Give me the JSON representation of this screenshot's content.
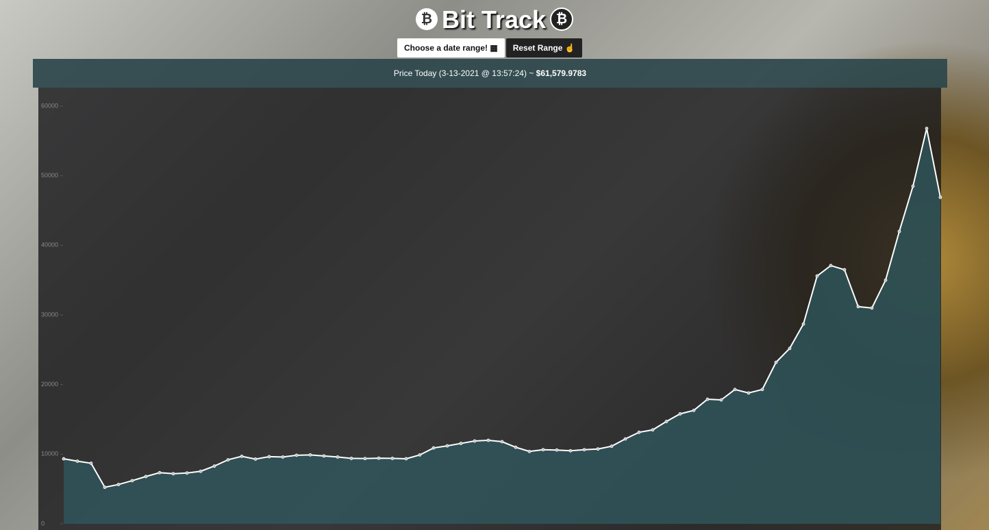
{
  "header": {
    "title": "Bit Track"
  },
  "buttons": [
    "Choose a date range!",
    "Reset Range"
  ],
  "price_banner": {
    "label": "Price Today (3-13-2021 @ 13:57:24) ~",
    "price": "$61,579.9783"
  },
  "chart_data": {
    "type": "line",
    "color": "#ffffff",
    "fill": "#2f5a60",
    "ylim": [
      0,
      60000
    ],
    "yticks": [
      0,
      10000,
      20000,
      30000,
      40000,
      50000,
      60000
    ],
    "grid": false,
    "values": [
      9340,
      9000,
      8700,
      5250,
      5650,
      6200,
      6800,
      7350,
      7200,
      7300,
      7550,
      8300,
      9200,
      9700,
      9300,
      9650,
      9600,
      9850,
      9900,
      9750,
      9600,
      9400,
      9380,
      9430,
      9400,
      9350,
      9900,
      10900,
      11200,
      11550,
      11900,
      12000,
      11800,
      11000,
      10400,
      10650,
      10600,
      10500,
      10650,
      10750,
      11150,
      12200,
      13150,
      13500,
      14700,
      15800,
      16300,
      17900,
      17800,
      19300,
      18800,
      19300,
      23200,
      25200,
      28700,
      35600,
      37100,
      36500,
      31200,
      31000,
      35000,
      42000,
      48500,
      56800,
      46900
    ]
  }
}
